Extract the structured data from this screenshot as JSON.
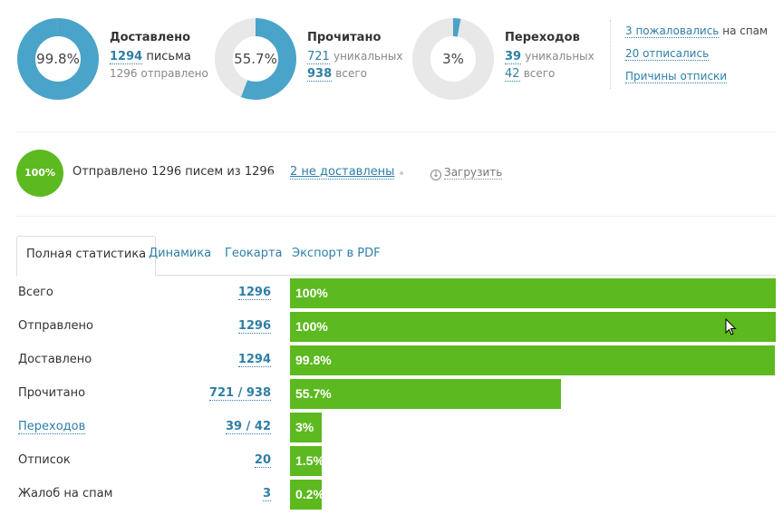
{
  "stats": [
    {
      "percent_label": "99.8%",
      "percent": 99.8,
      "title": "Доставлено",
      "line1_num": "1294",
      "line1_text": "письма",
      "line2_text": "1296 отправлено",
      "color": "#4aa3c9"
    },
    {
      "percent_label": "55.7%",
      "percent": 55.7,
      "title": "Прочитано",
      "line1_num": "721",
      "line1_text": "уникальных",
      "line2_num": "938",
      "line2_text": "всего",
      "color": "#4aa3c9"
    },
    {
      "percent_label": "3%",
      "percent": 3,
      "title": "Переходов",
      "line1_num": "39",
      "line1_text": "уникальных",
      "line2_num": "42",
      "line2_text": "всего",
      "color": "#4aa3c9"
    }
  ],
  "links": {
    "spam_link": "3 пожаловались",
    "spam_text": "на спам",
    "unsub_link": "20 отписались",
    "reasons_link": "Причины отписки"
  },
  "send": {
    "percent_label": "100%",
    "text": "Отправлено 1296 писем из 1296",
    "fail_link": "2 не доставлены",
    "download": "Загрузить"
  },
  "tabs": [
    {
      "label": "Полная статистика",
      "active": true
    },
    {
      "label": "Динамика"
    },
    {
      "label": "Геокарта"
    },
    {
      "label": "Экспорт в PDF"
    }
  ],
  "table": [
    {
      "label": "Всего",
      "value": "1296",
      "bar_label": "100%",
      "percent": 100
    },
    {
      "label": "Отправлено",
      "value": "1296",
      "bar_label": "100%",
      "percent": 100
    },
    {
      "label": "Доставлено",
      "value": "1294",
      "bar_label": "99.8%",
      "percent": 99.8
    },
    {
      "label": "Прочитано",
      "value": "721 / 938",
      "bar_label": "55.7%",
      "percent": 55.7
    },
    {
      "label": "Переходов",
      "value": "39 / 42",
      "bar_label": "3%",
      "percent": 6.5,
      "is_link": true
    },
    {
      "label": "Отписок",
      "value": "20",
      "bar_label": "1.5%",
      "percent": 6.5
    },
    {
      "label": "Жалоб на спам",
      "value": "3",
      "bar_label": "0.2%",
      "percent": 6.5
    }
  ],
  "colors": {
    "accent": "#2e7fa8",
    "donut": "#4aa3c9",
    "donut_track": "#e8e8e8",
    "bar": "#5cb91f"
  }
}
